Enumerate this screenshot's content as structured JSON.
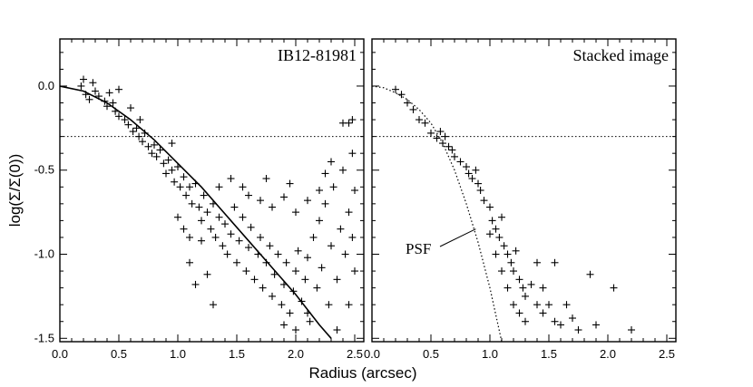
{
  "chart_data": [
    {
      "type": "scatter",
      "title": "IB12-81981",
      "xlabel": "Radius (arcsec)",
      "ylabel": "log(Σ/Σ(0))",
      "xlim": [
        0.0,
        2.5
      ],
      "ylim": [
        -1.52,
        0.28
      ],
      "xticks": [
        "0.0",
        "0.5",
        "1.0",
        "1.5",
        "2.0",
        "2.5"
      ],
      "yticks": [
        {
          "value": 0.0,
          "label": "0.0"
        },
        {
          "value": -0.5,
          "label": "-0.5"
        },
        {
          "value": -1.0,
          "label": "-1.0"
        },
        {
          "value": -1.5,
          "label": "-1.5"
        }
      ],
      "reference_line_y": -0.3,
      "fit_curve": {
        "type": "line",
        "x": [
          0.0,
          0.2,
          0.4,
          0.6,
          0.8,
          1.0,
          1.2,
          1.4,
          1.6,
          1.8,
          2.0,
          2.2,
          2.3
        ],
        "y": [
          0.0,
          -0.03,
          -0.1,
          -0.2,
          -0.32,
          -0.46,
          -0.6,
          -0.76,
          -0.92,
          -1.08,
          -1.24,
          -1.42,
          -1.5
        ]
      },
      "points": [
        {
          "x": 0.18,
          "y": 0.0
        },
        {
          "x": 0.2,
          "y": 0.04
        },
        {
          "x": 0.22,
          "y": -0.05
        },
        {
          "x": 0.25,
          "y": -0.08
        },
        {
          "x": 0.28,
          "y": 0.02
        },
        {
          "x": 0.3,
          "y": -0.03
        },
        {
          "x": 0.33,
          "y": -0.06
        },
        {
          "x": 0.38,
          "y": -0.09
        },
        {
          "x": 0.4,
          "y": -0.12
        },
        {
          "x": 0.42,
          "y": -0.04
        },
        {
          "x": 0.45,
          "y": -0.1
        },
        {
          "x": 0.47,
          "y": -0.15
        },
        {
          "x": 0.5,
          "y": -0.02
        },
        {
          "x": 0.5,
          "y": -0.18
        },
        {
          "x": 0.55,
          "y": -0.2
        },
        {
          "x": 0.58,
          "y": -0.23
        },
        {
          "x": 0.6,
          "y": -0.13
        },
        {
          "x": 0.62,
          "y": -0.27
        },
        {
          "x": 0.65,
          "y": -0.25
        },
        {
          "x": 0.67,
          "y": -0.3
        },
        {
          "x": 0.68,
          "y": -0.2
        },
        {
          "x": 0.7,
          "y": -0.33
        },
        {
          "x": 0.72,
          "y": -0.28
        },
        {
          "x": 0.75,
          "y": -0.36
        },
        {
          "x": 0.78,
          "y": -0.4
        },
        {
          "x": 0.8,
          "y": -0.35
        },
        {
          "x": 0.82,
          "y": -0.42
        },
        {
          "x": 0.85,
          "y": -0.38
        },
        {
          "x": 0.88,
          "y": -0.46
        },
        {
          "x": 0.9,
          "y": -0.52
        },
        {
          "x": 0.92,
          "y": -0.44
        },
        {
          "x": 0.95,
          "y": -0.5
        },
        {
          "x": 0.95,
          "y": -0.34
        },
        {
          "x": 0.97,
          "y": -0.57
        },
        {
          "x": 1.0,
          "y": -0.48
        },
        {
          "x": 1.02,
          "y": -0.6
        },
        {
          "x": 1.05,
          "y": -0.54
        },
        {
          "x": 1.07,
          "y": -0.65
        },
        {
          "x": 1.1,
          "y": -0.6
        },
        {
          "x": 1.12,
          "y": -0.7
        },
        {
          "x": 1.15,
          "y": -0.58
        },
        {
          "x": 1.18,
          "y": -0.72
        },
        {
          "x": 1.2,
          "y": -0.8
        },
        {
          "x": 1.22,
          "y": -0.65
        },
        {
          "x": 1.25,
          "y": -0.75
        },
        {
          "x": 1.28,
          "y": -0.85
        },
        {
          "x": 1.3,
          "y": -0.7
        },
        {
          "x": 1.32,
          "y": -0.9
        },
        {
          "x": 1.35,
          "y": -0.78
        },
        {
          "x": 1.38,
          "y": -0.95
        },
        {
          "x": 1.4,
          "y": -0.82
        },
        {
          "x": 1.42,
          "y": -1.0
        },
        {
          "x": 1.45,
          "y": -0.88
        },
        {
          "x": 1.48,
          "y": -0.72
        },
        {
          "x": 1.5,
          "y": -1.05
        },
        {
          "x": 1.52,
          "y": -0.92
        },
        {
          "x": 1.55,
          "y": -0.78
        },
        {
          "x": 1.58,
          "y": -1.1
        },
        {
          "x": 1.6,
          "y": -0.96
        },
        {
          "x": 1.62,
          "y": -0.84
        },
        {
          "x": 1.65,
          "y": -1.15
        },
        {
          "x": 1.68,
          "y": -1.0
        },
        {
          "x": 1.7,
          "y": -0.9
        },
        {
          "x": 1.72,
          "y": -1.2
        },
        {
          "x": 1.75,
          "y": -1.05
        },
        {
          "x": 1.78,
          "y": -0.95
        },
        {
          "x": 1.8,
          "y": -1.25
        },
        {
          "x": 1.82,
          "y": -1.12
        },
        {
          "x": 1.85,
          "y": -1.0
        },
        {
          "x": 1.88,
          "y": -1.3
        },
        {
          "x": 1.9,
          "y": -1.18
        },
        {
          "x": 1.92,
          "y": -1.05
        },
        {
          "x": 1.95,
          "y": -1.35
        },
        {
          "x": 1.98,
          "y": -1.22
        },
        {
          "x": 2.0,
          "y": -1.1
        },
        {
          "x": 2.02,
          "y": -0.98
        },
        {
          "x": 2.05,
          "y": -1.28
        },
        {
          "x": 2.08,
          "y": -1.15
        },
        {
          "x": 2.1,
          "y": -1.02
        },
        {
          "x": 2.12,
          "y": -1.4
        },
        {
          "x": 2.15,
          "y": -0.9
        },
        {
          "x": 2.18,
          "y": -1.2
        },
        {
          "x": 2.2,
          "y": -0.8
        },
        {
          "x": 2.22,
          "y": -1.08
        },
        {
          "x": 2.25,
          "y": -0.7
        },
        {
          "x": 2.28,
          "y": -1.3
        },
        {
          "x": 2.3,
          "y": -0.95
        },
        {
          "x": 2.32,
          "y": -0.6
        },
        {
          "x": 2.35,
          "y": -1.15
        },
        {
          "x": 2.38,
          "y": -0.85
        },
        {
          "x": 2.4,
          "y": -0.5
        },
        {
          "x": 2.42,
          "y": -1.0
        },
        {
          "x": 2.45,
          "y": -0.75
        },
        {
          "x": 2.48,
          "y": -0.4
        },
        {
          "x": 2.4,
          "y": -0.22
        },
        {
          "x": 2.45,
          "y": -0.22
        },
        {
          "x": 2.48,
          "y": -0.2
        },
        {
          "x": 2.5,
          "y": -1.1
        },
        {
          "x": 2.5,
          "y": -0.62
        },
        {
          "x": 1.0,
          "y": -0.78
        },
        {
          "x": 1.05,
          "y": -0.85
        },
        {
          "x": 1.1,
          "y": -1.05
        },
        {
          "x": 1.15,
          "y": -1.18
        },
        {
          "x": 1.2,
          "y": -0.92
        },
        {
          "x": 1.25,
          "y": -1.12
        },
        {
          "x": 1.3,
          "y": -1.3
        },
        {
          "x": 1.1,
          "y": -0.9
        },
        {
          "x": 1.6,
          "y": -0.65
        },
        {
          "x": 1.7,
          "y": -0.68
        },
        {
          "x": 1.8,
          "y": -0.72
        },
        {
          "x": 1.9,
          "y": -0.66
        },
        {
          "x": 2.0,
          "y": -0.75
        },
        {
          "x": 2.1,
          "y": -0.68
        },
        {
          "x": 2.2,
          "y": -0.62
        },
        {
          "x": 1.9,
          "y": -1.42
        },
        {
          "x": 2.0,
          "y": -1.45
        },
        {
          "x": 2.1,
          "y": -1.35
        },
        {
          "x": 1.95,
          "y": -0.58
        },
        {
          "x": 2.25,
          "y": -0.52
        },
        {
          "x": 2.3,
          "y": -0.45
        },
        {
          "x": 1.75,
          "y": -0.55
        },
        {
          "x": 1.55,
          "y": -0.6
        },
        {
          "x": 1.45,
          "y": -0.55
        },
        {
          "x": 1.35,
          "y": -0.6
        },
        {
          "x": 2.45,
          "y": -1.3
        },
        {
          "x": 2.35,
          "y": -1.45
        },
        {
          "x": 2.48,
          "y": -0.9
        }
      ]
    },
    {
      "type": "scatter",
      "title": "Stacked image",
      "xlabel": "",
      "ylabel": "",
      "xlim": [
        0.0,
        2.5
      ],
      "ylim": [
        -1.52,
        0.28
      ],
      "xticks": [
        "0.0",
        "0.5",
        "1.0",
        "1.5",
        "2.0",
        "2.5"
      ],
      "reference_line_y": -0.3,
      "annotation": "PSF",
      "psf_curve": {
        "type": "line",
        "x": [
          0.0,
          0.1,
          0.2,
          0.3,
          0.4,
          0.5,
          0.6,
          0.7,
          0.8,
          0.9,
          1.0,
          1.05,
          1.1
        ],
        "y": [
          0.0,
          -0.01,
          -0.04,
          -0.08,
          -0.14,
          -0.22,
          -0.34,
          -0.5,
          -0.7,
          -0.93,
          -1.2,
          -1.36,
          -1.52
        ]
      },
      "points": [
        {
          "x": 0.2,
          "y": -0.02
        },
        {
          "x": 0.25,
          "y": -0.05
        },
        {
          "x": 0.3,
          "y": -0.1
        },
        {
          "x": 0.35,
          "y": -0.14
        },
        {
          "x": 0.4,
          "y": -0.2
        },
        {
          "x": 0.45,
          "y": -0.22
        },
        {
          "x": 0.5,
          "y": -0.28
        },
        {
          "x": 0.55,
          "y": -0.31
        },
        {
          "x": 0.58,
          "y": -0.27
        },
        {
          "x": 0.6,
          "y": -0.34
        },
        {
          "x": 0.62,
          "y": -0.3
        },
        {
          "x": 0.65,
          "y": -0.36
        },
        {
          "x": 0.68,
          "y": -0.38
        },
        {
          "x": 0.7,
          "y": -0.42
        },
        {
          "x": 0.75,
          "y": -0.45
        },
        {
          "x": 0.8,
          "y": -0.48
        },
        {
          "x": 0.82,
          "y": -0.52
        },
        {
          "x": 0.85,
          "y": -0.55
        },
        {
          "x": 0.88,
          "y": -0.5
        },
        {
          "x": 0.9,
          "y": -0.58
        },
        {
          "x": 0.92,
          "y": -0.62
        },
        {
          "x": 0.95,
          "y": -0.68
        },
        {
          "x": 1.0,
          "y": -0.72
        },
        {
          "x": 1.02,
          "y": -0.8
        },
        {
          "x": 1.05,
          "y": -0.85
        },
        {
          "x": 1.08,
          "y": -0.9
        },
        {
          "x": 1.1,
          "y": -0.78
        },
        {
          "x": 1.12,
          "y": -0.95
        },
        {
          "x": 1.15,
          "y": -1.0
        },
        {
          "x": 1.18,
          "y": -1.05
        },
        {
          "x": 1.2,
          "y": -1.1
        },
        {
          "x": 1.22,
          "y": -0.98
        },
        {
          "x": 1.25,
          "y": -1.15
        },
        {
          "x": 1.28,
          "y": -1.2
        },
        {
          "x": 1.3,
          "y": -1.25
        },
        {
          "x": 1.35,
          "y": -1.18
        },
        {
          "x": 1.4,
          "y": -1.3
        },
        {
          "x": 1.45,
          "y": -1.35
        },
        {
          "x": 1.5,
          "y": -1.3
        },
        {
          "x": 1.55,
          "y": -1.4
        },
        {
          "x": 1.6,
          "y": -1.42
        },
        {
          "x": 1.65,
          "y": -1.3
        },
        {
          "x": 1.7,
          "y": -1.38
        },
        {
          "x": 1.75,
          "y": -1.45
        },
        {
          "x": 1.85,
          "y": -1.12
        },
        {
          "x": 2.05,
          "y": -1.2
        },
        {
          "x": 2.2,
          "y": -1.45
        },
        {
          "x": 1.05,
          "y": -1.0
        },
        {
          "x": 1.1,
          "y": -1.1
        },
        {
          "x": 1.15,
          "y": -1.2
        },
        {
          "x": 1.2,
          "y": -1.3
        },
        {
          "x": 1.0,
          "y": -0.88
        },
        {
          "x": 1.3,
          "y": -1.4
        },
        {
          "x": 1.55,
          "y": -1.05
        },
        {
          "x": 1.4,
          "y": -1.05
        },
        {
          "x": 1.9,
          "y": -1.42
        },
        {
          "x": 1.25,
          "y": -1.35
        },
        {
          "x": 1.45,
          "y": -1.2
        }
      ]
    }
  ]
}
